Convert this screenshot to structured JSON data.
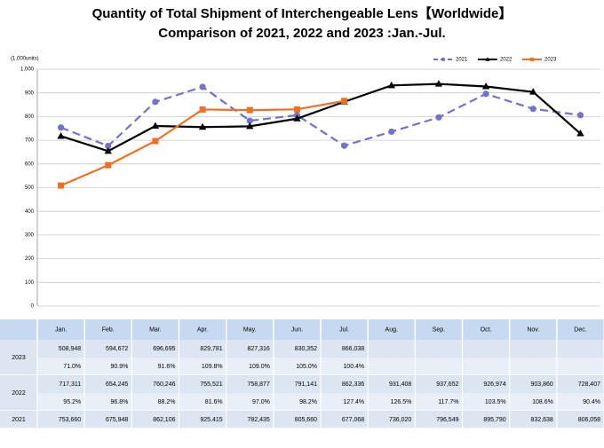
{
  "chart_data": {
    "type": "line",
    "title": "Quantity of Total Shipment of Interchengeable Lens【Worldwide】",
    "subtitle": "Comparison of 2021, 2022 and 2023 :Jan.-Jul.",
    "y_label": "(1,000units)",
    "categories": [
      "Jan.",
      "Feb.",
      "Mar.",
      "Apr.",
      "May.",
      "Jun.",
      "Jul.",
      "Aug.",
      "Sep.",
      "Oct.",
      "Nov.",
      "Dec."
    ],
    "ylim": [
      0,
      1000
    ],
    "yticks": [
      0,
      100,
      200,
      300,
      400,
      500,
      600,
      700,
      800,
      900,
      {
        "value": 1000,
        "label": "1,000"
      }
    ],
    "grid": true,
    "legend": "top-right",
    "series": [
      {
        "name": "2021",
        "color": "#7272c9",
        "dashed": true,
        "marker": "circle",
        "values": [
          753.66,
          675.948,
          862.106,
          925.415,
          782.435,
          805.66,
          677.068,
          736.02,
          796.549,
          895.79,
          832.638,
          806.058
        ],
        "value_labels": [
          "753,660",
          "675,948",
          "862,106",
          "925,415",
          "782,435",
          "805,660",
          "677,068",
          "736,020",
          "796,549",
          "895,790",
          "832,638",
          "806,058"
        ]
      },
      {
        "name": "2022",
        "color": "#000000",
        "dashed": false,
        "marker": "triangle",
        "values": [
          717.311,
          654.245,
          760.246,
          755.521,
          758.877,
          791.141,
          862.336,
          931.408,
          937.652,
          926.974,
          903.86,
          728.407
        ],
        "value_labels": [
          "717,311",
          "654,245",
          "760,246",
          "755,521",
          "758,877",
          "791,141",
          "862,336",
          "931,408",
          "937,652",
          "926,974",
          "903,860",
          "728,407"
        ],
        "change_labels": [
          "95.2%",
          "96.8%",
          "88.2%",
          "81.6%",
          "97.0%",
          "98.2%",
          "127.4%",
          "126.5%",
          "117.7%",
          "103.5%",
          "108.6%",
          "90.4%"
        ]
      },
      {
        "name": "2023",
        "color": "#f07022",
        "dashed": false,
        "marker": "square",
        "values": [
          508.948,
          594.672,
          696.695,
          829.781,
          827.316,
          830.352,
          866.038,
          null,
          null,
          null,
          null,
          null
        ],
        "value_labels": [
          "508,948",
          "594,672",
          "696,695",
          "829,781",
          "827,316",
          "830,352",
          "866,038",
          null,
          null,
          null,
          null,
          null
        ],
        "change_labels": [
          "71.0%",
          "90.9%",
          "91.6%",
          "109.8%",
          "109.0%",
          "105.0%",
          "100.4%",
          null,
          null,
          null,
          null,
          null
        ]
      }
    ]
  }
}
